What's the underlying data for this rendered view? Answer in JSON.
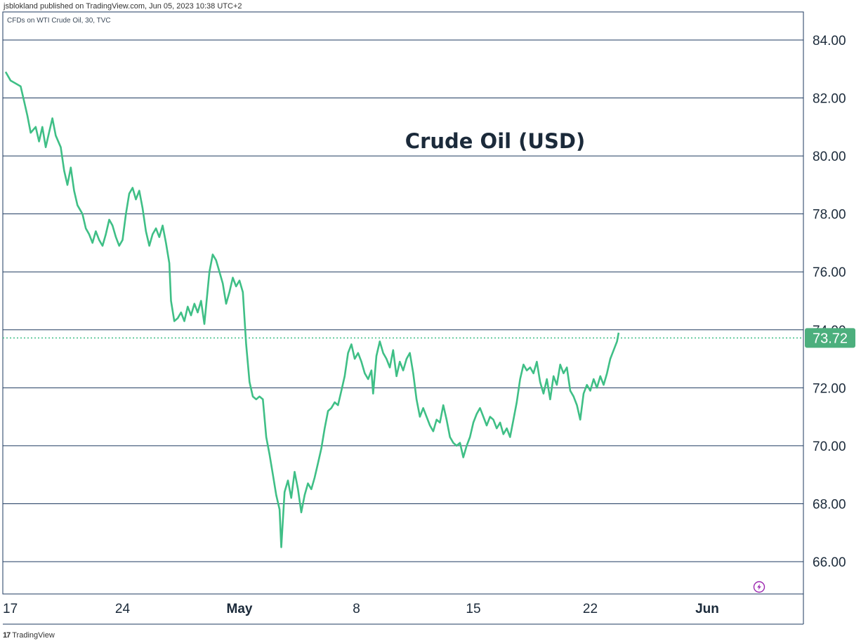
{
  "header": {
    "published_by": "jsblokland published on TradingView.com, Jun 05, 2023 10:38 UTC+2"
  },
  "footer": {
    "brand_logo": "17",
    "brand_name": "TradingView"
  },
  "colors": {
    "line": "#3fbf86",
    "badge": "#4caf7d",
    "grid": "#1e3a5f"
  },
  "icons": {
    "flash": "lightning-bolt-icon"
  },
  "chart_data": {
    "type": "line",
    "title": "Crude Oil (USD)",
    "subtitle": "CFDs on WTI Crude Oil, 30, TVC",
    "last_price": 73.72,
    "last_price_label": "73.72",
    "ylim": [
      64.9,
      85.3
    ],
    "y_ticks": [
      66,
      68,
      70,
      72,
      74,
      76,
      78,
      80,
      82,
      84
    ],
    "y_tick_labels": [
      "66.00",
      "68.00",
      "70.00",
      "72.00",
      "74.00",
      "76.00",
      "78.00",
      "80.00",
      "82.00",
      "84.00"
    ],
    "x_range": [
      17.0,
      53.7
    ],
    "x_ticks": [
      {
        "label": "17",
        "t": 17,
        "bold": false
      },
      {
        "label": "24",
        "t": 24,
        "bold": false
      },
      {
        "label": "May",
        "t": 31,
        "bold": true
      },
      {
        "label": "8",
        "t": 38,
        "bold": false
      },
      {
        "label": "15",
        "t": 45,
        "bold": false
      },
      {
        "label": "22",
        "t": 52,
        "bold": false
      },
      {
        "label": "Jun",
        "t": 59,
        "bold": true
      }
    ],
    "x_unit_note": "",
    "series": [
      {
        "points": [
          [
            17.0,
            82.9
          ],
          [
            17.3,
            82.6
          ],
          [
            17.6,
            82.5
          ],
          [
            17.9,
            82.4
          ],
          [
            18.1,
            81.9
          ],
          [
            18.3,
            81.4
          ],
          [
            18.5,
            80.8
          ],
          [
            18.8,
            81.0
          ],
          [
            19.0,
            80.5
          ],
          [
            19.2,
            81.0
          ],
          [
            19.4,
            80.3
          ],
          [
            19.6,
            80.8
          ],
          [
            19.8,
            81.3
          ],
          [
            20.0,
            80.7
          ],
          [
            20.3,
            80.3
          ],
          [
            20.5,
            79.5
          ],
          [
            20.7,
            79.0
          ],
          [
            20.9,
            79.6
          ],
          [
            21.1,
            78.8
          ],
          [
            21.3,
            78.3
          ],
          [
            21.6,
            78.0
          ],
          [
            21.8,
            77.5
          ],
          [
            22.0,
            77.3
          ],
          [
            22.2,
            77.0
          ],
          [
            22.4,
            77.4
          ],
          [
            22.6,
            77.1
          ],
          [
            22.8,
            76.9
          ],
          [
            23.0,
            77.3
          ],
          [
            23.2,
            77.8
          ],
          [
            23.4,
            77.6
          ],
          [
            23.6,
            77.2
          ],
          [
            23.8,
            76.9
          ],
          [
            24.0,
            77.1
          ],
          [
            24.2,
            78.0
          ],
          [
            24.4,
            78.7
          ],
          [
            24.6,
            78.9
          ],
          [
            24.8,
            78.5
          ],
          [
            25.0,
            78.8
          ],
          [
            25.2,
            78.2
          ],
          [
            25.4,
            77.4
          ],
          [
            25.6,
            76.9
          ],
          [
            25.8,
            77.3
          ],
          [
            26.0,
            77.5
          ],
          [
            26.2,
            77.2
          ],
          [
            26.4,
            77.6
          ],
          [
            26.6,
            77.0
          ],
          [
            26.8,
            76.3
          ],
          [
            26.9,
            75.0
          ],
          [
            27.1,
            74.3
          ],
          [
            27.3,
            74.4
          ],
          [
            27.5,
            74.6
          ],
          [
            27.7,
            74.3
          ],
          [
            27.9,
            74.8
          ],
          [
            28.1,
            74.5
          ],
          [
            28.3,
            74.9
          ],
          [
            28.5,
            74.6
          ],
          [
            28.7,
            75.0
          ],
          [
            28.9,
            74.2
          ],
          [
            29.0,
            74.8
          ],
          [
            29.2,
            76.0
          ],
          [
            29.4,
            76.6
          ],
          [
            29.6,
            76.4
          ],
          [
            29.8,
            76.0
          ],
          [
            30.0,
            75.6
          ],
          [
            30.2,
            74.9
          ],
          [
            30.4,
            75.3
          ],
          [
            30.6,
            75.8
          ],
          [
            30.8,
            75.5
          ],
          [
            31.0,
            75.7
          ],
          [
            31.2,
            75.3
          ],
          [
            31.4,
            73.5
          ],
          [
            31.6,
            72.2
          ],
          [
            31.8,
            71.7
          ],
          [
            32.0,
            71.6
          ],
          [
            32.2,
            71.7
          ],
          [
            32.4,
            71.6
          ],
          [
            32.6,
            70.3
          ],
          [
            32.8,
            69.7
          ],
          [
            33.0,
            69.0
          ],
          [
            33.2,
            68.3
          ],
          [
            33.4,
            67.8
          ],
          [
            33.5,
            66.5
          ],
          [
            33.7,
            68.4
          ],
          [
            33.9,
            68.8
          ],
          [
            34.1,
            68.2
          ],
          [
            34.3,
            69.1
          ],
          [
            34.5,
            68.5
          ],
          [
            34.7,
            67.7
          ],
          [
            34.9,
            68.3
          ],
          [
            35.1,
            68.7
          ],
          [
            35.3,
            68.5
          ],
          [
            35.5,
            68.9
          ],
          [
            35.7,
            69.4
          ],
          [
            35.9,
            69.9
          ],
          [
            36.1,
            70.6
          ],
          [
            36.3,
            71.2
          ],
          [
            36.5,
            71.3
          ],
          [
            36.7,
            71.5
          ],
          [
            36.9,
            71.4
          ],
          [
            37.1,
            71.9
          ],
          [
            37.3,
            72.4
          ],
          [
            37.5,
            73.2
          ],
          [
            37.7,
            73.5
          ],
          [
            37.9,
            73.0
          ],
          [
            38.1,
            73.2
          ],
          [
            38.3,
            72.9
          ],
          [
            38.5,
            72.5
          ],
          [
            38.7,
            72.3
          ],
          [
            38.9,
            72.6
          ],
          [
            39.0,
            71.8
          ],
          [
            39.2,
            73.1
          ],
          [
            39.4,
            73.6
          ],
          [
            39.6,
            73.2
          ],
          [
            39.8,
            73.0
          ],
          [
            40.0,
            72.7
          ],
          [
            40.2,
            73.3
          ],
          [
            40.4,
            72.4
          ],
          [
            40.6,
            72.9
          ],
          [
            40.8,
            72.6
          ],
          [
            41.0,
            73.0
          ],
          [
            41.2,
            73.2
          ],
          [
            41.4,
            72.5
          ],
          [
            41.6,
            71.6
          ],
          [
            41.8,
            71.0
          ],
          [
            42.0,
            71.3
          ],
          [
            42.2,
            71.0
          ],
          [
            42.4,
            70.7
          ],
          [
            42.6,
            70.5
          ],
          [
            42.8,
            70.9
          ],
          [
            43.0,
            70.8
          ],
          [
            43.2,
            71.4
          ],
          [
            43.4,
            70.9
          ],
          [
            43.6,
            70.3
          ],
          [
            43.8,
            70.1
          ],
          [
            44.0,
            70.0
          ],
          [
            44.2,
            70.1
          ],
          [
            44.4,
            69.6
          ],
          [
            44.6,
            70.0
          ],
          [
            44.8,
            70.3
          ],
          [
            45.0,
            70.8
          ],
          [
            45.2,
            71.1
          ],
          [
            45.4,
            71.3
          ],
          [
            45.6,
            71.0
          ],
          [
            45.8,
            70.7
          ],
          [
            46.0,
            71.0
          ],
          [
            46.2,
            70.9
          ],
          [
            46.4,
            70.6
          ],
          [
            46.6,
            70.8
          ],
          [
            46.8,
            70.4
          ],
          [
            47.0,
            70.6
          ],
          [
            47.2,
            70.3
          ],
          [
            47.4,
            70.9
          ],
          [
            47.6,
            71.5
          ],
          [
            47.8,
            72.3
          ],
          [
            48.0,
            72.8
          ],
          [
            48.2,
            72.6
          ],
          [
            48.4,
            72.7
          ],
          [
            48.6,
            72.5
          ],
          [
            48.8,
            72.9
          ],
          [
            49.0,
            72.2
          ],
          [
            49.2,
            71.8
          ],
          [
            49.4,
            72.3
          ],
          [
            49.6,
            71.6
          ],
          [
            49.8,
            72.4
          ],
          [
            50.0,
            72.1
          ],
          [
            50.2,
            72.8
          ],
          [
            50.4,
            72.5
          ],
          [
            50.6,
            72.7
          ],
          [
            50.8,
            71.9
          ],
          [
            51.0,
            71.7
          ],
          [
            51.2,
            71.4
          ],
          [
            51.4,
            70.9
          ],
          [
            51.6,
            71.8
          ],
          [
            51.8,
            72.1
          ],
          [
            52.0,
            71.9
          ],
          [
            52.2,
            72.3
          ],
          [
            52.4,
            72.0
          ],
          [
            52.6,
            72.4
          ],
          [
            52.8,
            72.1
          ],
          [
            53.0,
            72.5
          ],
          [
            53.2,
            73.0
          ],
          [
            53.4,
            73.3
          ],
          [
            53.6,
            73.6
          ],
          [
            53.7,
            73.9
          ]
        ]
      }
    ]
  }
}
